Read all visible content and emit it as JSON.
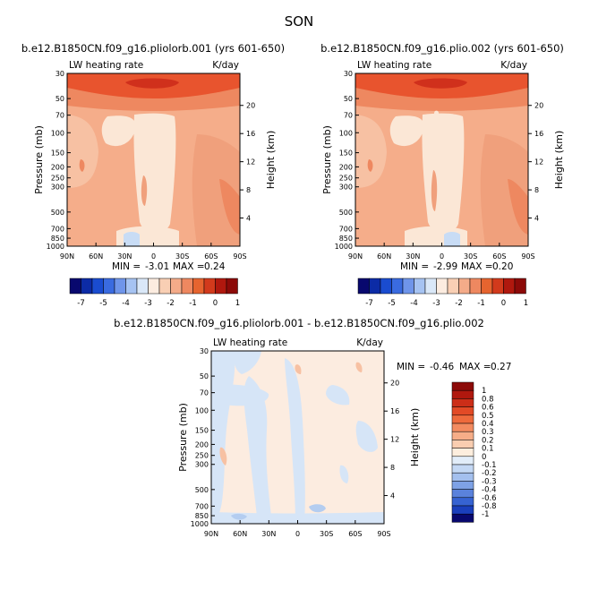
{
  "page": {
    "title": "SON",
    "min_label": "MIN =",
    "max_label": "MAX =",
    "colors": {
      "blue_dark": "#08086e",
      "blue": "#3c64dc",
      "blue_light": "#c8dcf5",
      "cream": "#fcece0",
      "peach": "#f7c1a3",
      "orange": "#ee8860",
      "orange_red": "#e8542e",
      "red_dark": "#8c0a08"
    }
  },
  "chart_data": [
    {
      "id": "p1",
      "type": "heatmap",
      "title": "b.e12.B1850CN.f09_g16.pliolorb.001 (yrs 601-650)",
      "variable": "LW heating rate",
      "units": "K/day",
      "ylabel": "Pressure (mb)",
      "y2label": "Height (km)",
      "x_ticks": [
        "90N",
        "60N",
        "30N",
        "0",
        "30S",
        "60S",
        "90S"
      ],
      "y_ticks": [
        "30",
        "50",
        "70",
        "100",
        "150",
        "200",
        "250",
        "300",
        "500",
        "700",
        "850",
        "1000"
      ],
      "y2_ticks": [
        "20",
        "16",
        "12",
        "8",
        "4"
      ],
      "min": "-3.01",
      "max": "0.24",
      "colorbar_labels": [
        "-7",
        "-5",
        "-4",
        "-3",
        "-2",
        "-1",
        "0",
        "1"
      ]
    },
    {
      "id": "p2",
      "type": "heatmap",
      "title": "b.e12.B1850CN.f09_g16.plio.002 (yrs 601-650)",
      "variable": "LW heating rate",
      "units": "K/day",
      "ylabel": "Pressure (mb)",
      "y2label": "Height (km)",
      "x_ticks": [
        "90N",
        "60N",
        "30N",
        "0",
        "30S",
        "60S",
        "90S"
      ],
      "y_ticks": [
        "30",
        "50",
        "70",
        "100",
        "150",
        "200",
        "250",
        "300",
        "500",
        "700",
        "850",
        "1000"
      ],
      "y2_ticks": [
        "20",
        "16",
        "12",
        "8",
        "4"
      ],
      "min": "-2.99",
      "max": "0.20",
      "colorbar_labels": [
        "-7",
        "-5",
        "-4",
        "-3",
        "-2",
        "-1",
        "0",
        "1"
      ]
    },
    {
      "id": "p3",
      "type": "heatmap",
      "title": "b.e12.B1850CN.f09_g16.pliolorb.001 - b.e12.B1850CN.f09_g16.plio.002",
      "variable": "LW heating rate",
      "units": "K/day",
      "ylabel": "Pressure (mb)",
      "y2label": "Height (km)",
      "x_ticks": [
        "90N",
        "60N",
        "30N",
        "0",
        "30S",
        "60S",
        "90S"
      ],
      "y_ticks": [
        "30",
        "50",
        "70",
        "100",
        "150",
        "200",
        "250",
        "300",
        "500",
        "700",
        "850",
        "1000"
      ],
      "y2_ticks": [
        "20",
        "16",
        "12",
        "8",
        "4"
      ],
      "min": "-0.46",
      "max": "0.27",
      "colorbar_labels": [
        "1",
        "0.8",
        "0.6",
        "0.5",
        "0.4",
        "0.3",
        "0.2",
        "0.1",
        "0",
        "-0.1",
        "-0.2",
        "-0.3",
        "-0.4",
        "-0.6",
        "-0.8",
        "-1"
      ]
    }
  ]
}
